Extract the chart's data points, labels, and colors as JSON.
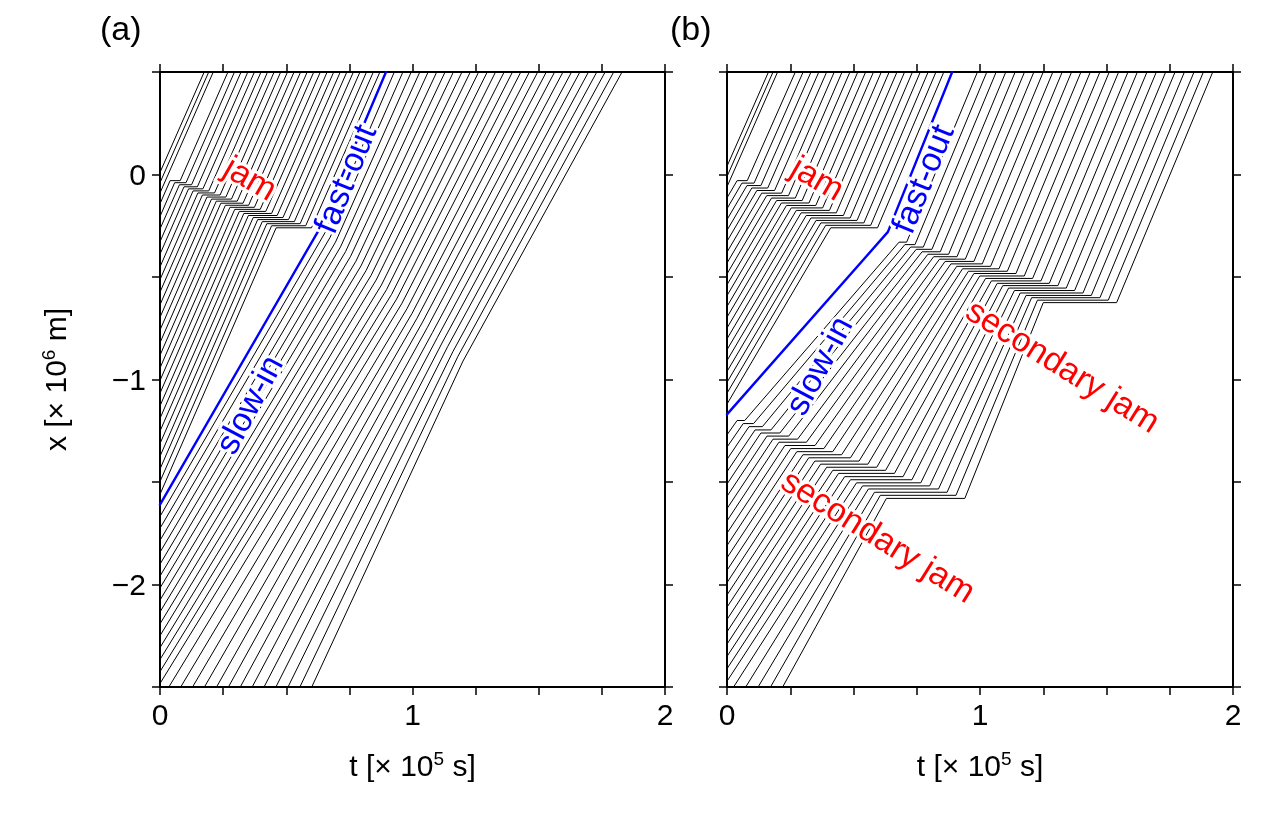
{
  "chart_data": [
    {
      "type": "line",
      "title": "(a)",
      "xlabel": "t [× 10$^{5}$ s]",
      "ylabel": "x [× 10$^{6}$ m]",
      "xlim": [
        0,
        2
      ],
      "ylim": [
        -2.5,
        0.5
      ],
      "xticks": [
        0,
        {
          "value": 0.25,
          "label": null
        },
        {
          "value": 0.5,
          "label": null
        },
        {
          "value": 0.75,
          "label": null
        },
        1,
        {
          "value": 1.25,
          "label": null
        },
        {
          "value": 1.5,
          "label": null
        },
        {
          "value": 1.75,
          "label": null
        },
        2
      ],
      "yticks": [
        {
          "value": -2.5,
          "label": null
        },
        {
          "value": -2,
          "label": "−2"
        },
        {
          "value": -1.5,
          "label": null
        },
        {
          "value": -1,
          "label": "−1"
        },
        {
          "value": -0.5,
          "label": null
        },
        0,
        {
          "value": 0.5,
          "label": null
        }
      ],
      "marker": "none",
      "line_style": "solid",
      "annotations": [
        "jam",
        "fast-out",
        "slow-in"
      ],
      "series": [
        {
          "color": "#000000",
          "x": [
            0,
            0.175
          ],
          "values": [
            0.01,
            0.5
          ]
        },
        {
          "color": "#000000",
          "x": [
            0,
            0.193
          ],
          "values": [
            -0.04,
            0.5
          ]
        },
        {
          "color": "#000000",
          "x": [
            0,
            0.211
          ],
          "values": [
            -0.09,
            0.5
          ]
        },
        {
          "color": "#000000",
          "x": [
            0,
            0.04,
            0.08,
            0.269
          ],
          "values": [
            -0.143,
            -0.03,
            -0.03,
            0.5
          ]
        },
        {
          "color": "#000000",
          "x": [
            0,
            0.058,
            0.103,
            0.295
          ],
          "values": [
            -0.205,
            -0.04,
            -0.04,
            0.5
          ]
        },
        {
          "color": "#000000",
          "x": [
            0,
            0.077,
            0.125,
            0.321
          ],
          "values": [
            -0.266,
            -0.05,
            -0.05,
            0.5
          ]
        },
        {
          "color": "#000000",
          "x": [
            0,
            0.095,
            0.148,
            0.348
          ],
          "values": [
            -0.328,
            -0.06,
            -0.06,
            0.5
          ]
        },
        {
          "color": "#000000",
          "x": [
            0,
            0.113,
            0.17,
            0.374
          ],
          "values": [
            -0.389,
            -0.07,
            -0.07,
            0.5
          ]
        },
        {
          "color": "#000000",
          "x": [
            0,
            0.131,
            0.193,
            0.4
          ],
          "values": [
            -0.451,
            -0.08,
            -0.08,
            0.5
          ]
        },
        {
          "color": "#000000",
          "x": [
            0,
            0.15,
            0.216,
            0.426
          ],
          "values": [
            -0.513,
            -0.09,
            -0.09,
            0.5
          ]
        },
        {
          "color": "#000000",
          "x": [
            0,
            0.168,
            0.238,
            0.452
          ],
          "values": [
            -0.574,
            -0.1,
            -0.1,
            0.5
          ]
        },
        {
          "color": "#000000",
          "x": [
            0,
            0.186,
            0.261,
            0.478
          ],
          "values": [
            -0.636,
            -0.11,
            -0.11,
            0.5
          ]
        },
        {
          "color": "#000000",
          "x": [
            0,
            0.204,
            0.283,
            0.505
          ],
          "values": [
            -0.697,
            -0.12,
            -0.12,
            0.5
          ]
        },
        {
          "color": "#000000",
          "x": [
            0,
            0.223,
            0.306,
            0.531
          ],
          "values": [
            -0.759,
            -0.13,
            -0.13,
            0.5
          ]
        },
        {
          "color": "#000000",
          "x": [
            0,
            0.241,
            0.329,
            0.557
          ],
          "values": [
            -0.821,
            -0.14,
            -0.14,
            0.5
          ]
        },
        {
          "color": "#000000",
          "x": [
            0,
            0.259,
            0.351,
            0.583
          ],
          "values": [
            -0.882,
            -0.15,
            -0.15,
            0.5
          ]
        },
        {
          "color": "#000000",
          "x": [
            0,
            0.277,
            0.374,
            0.609
          ],
          "values": [
            -0.944,
            -0.16,
            -0.16,
            0.5
          ]
        },
        {
          "color": "#000000",
          "x": [
            0,
            0.296,
            0.397,
            0.635
          ],
          "values": [
            -1.005,
            -0.17,
            -0.17,
            0.5
          ]
        },
        {
          "color": "#000000",
          "x": [
            0,
            0.314,
            0.419,
            0.662
          ],
          "values": [
            -1.067,
            -0.18,
            -0.18,
            0.5
          ]
        },
        {
          "color": "#000000",
          "x": [
            0,
            0.332,
            0.442,
            0.688
          ],
          "values": [
            -1.129,
            -0.19,
            -0.19,
            0.5
          ]
        },
        {
          "color": "#000000",
          "x": [
            0,
            0.35,
            0.464,
            0.714
          ],
          "values": [
            -1.19,
            -0.2,
            -0.2,
            0.5
          ]
        },
        {
          "color": "#000000",
          "x": [
            0,
            0.369,
            0.487,
            0.74
          ],
          "values": [
            -1.252,
            -0.21,
            -0.21,
            0.5
          ]
        },
        {
          "color": "#000000",
          "x": [
            0,
            0.387,
            0.509,
            0.766
          ],
          "values": [
            -1.313,
            -0.22,
            -0.22,
            0.5
          ]
        },
        {
          "color": "#000000",
          "x": [
            0,
            0.405,
            0.532,
            0.792
          ],
          "values": [
            -1.375,
            -0.23,
            -0.23,
            0.5
          ]
        },
        {
          "color": "#000000",
          "x": [
            0,
            0.423,
            0.555,
            0.818
          ],
          "values": [
            -1.437,
            -0.24,
            -0.24,
            0.5
          ]
        },
        {
          "color": "#000000",
          "x": [
            0,
            0.442,
            0.577,
            0.845
          ],
          "values": [
            -1.498,
            -0.25,
            -0.25,
            0.5
          ]
        },
        {
          "color": "#000000",
          "x": [
            0,
            0.46,
            0.6,
            0.871
          ],
          "values": [
            -1.56,
            -0.26,
            -0.26,
            0.5
          ]
        },
        {
          "color": "#000000",
          "x": [
            0,
            0.654,
            0.928
          ],
          "values": [
            -1.668,
            -0.283,
            0.5
          ]
        },
        {
          "color": "#000000",
          "x": [
            0,
            0.674,
            0.962
          ],
          "values": [
            -1.726,
            -0.306,
            0.5
          ]
        },
        {
          "color": "#000000",
          "x": [
            0,
            0.695,
            0.995
          ],
          "values": [
            -1.785,
            -0.33,
            0.5
          ]
        },
        {
          "color": "#000000",
          "x": [
            0,
            0.715,
            1.029
          ],
          "values": [
            -1.843,
            -0.353,
            0.5
          ]
        },
        {
          "color": "#000000",
          "x": [
            0,
            0.735,
            1.062
          ],
          "values": [
            -1.901,
            -0.376,
            0.5
          ]
        },
        {
          "color": "#000000",
          "x": [
            0,
            0.755,
            1.096
          ],
          "values": [
            -1.959,
            -0.399,
            0.5
          ]
        },
        {
          "color": "#000000",
          "x": [
            0,
            0.776,
            1.129
          ],
          "values": [
            -2.017,
            -0.423,
            0.5
          ]
        },
        {
          "color": "#000000",
          "x": [
            0,
            0.796,
            1.162
          ],
          "values": [
            -2.076,
            -0.446,
            0.5
          ]
        },
        {
          "color": "#000000",
          "x": [
            0,
            0.816,
            1.196
          ],
          "values": [
            -2.134,
            -0.469,
            0.5
          ]
        },
        {
          "color": "#000000",
          "x": [
            0,
            0.836,
            1.229
          ],
          "values": [
            -2.192,
            -0.492,
            0.5
          ]
        },
        {
          "color": "#000000",
          "x": [
            0,
            0.856,
            1.262
          ],
          "values": [
            -2.25,
            -0.515,
            0.5
          ]
        },
        {
          "color": "#000000",
          "x": [
            0,
            0.877,
            1.296
          ],
          "values": [
            -2.308,
            -0.539,
            0.5
          ]
        },
        {
          "color": "#000000",
          "x": [
            0,
            0.897,
            1.329
          ],
          "values": [
            -2.366,
            -0.562,
            0.5
          ]
        },
        {
          "color": "#000000",
          "x": [
            0,
            0.917,
            1.363
          ],
          "values": [
            -2.425,
            -0.585,
            0.5
          ]
        },
        {
          "color": "#000000",
          "x": [
            0,
            0.937,
            1.396
          ],
          "values": [
            -2.483,
            -0.608,
            0.5
          ]
        },
        {
          "color": "#000000",
          "x": [
            0.035,
            0.957,
            1.429
          ],
          "values": [
            -2.5,
            -0.631,
            0.5
          ]
        },
        {
          "color": "#000000",
          "x": [
            0.082,
            0.978,
            1.463
          ],
          "values": [
            -2.5,
            -0.655,
            0.5
          ]
        },
        {
          "color": "#000000",
          "x": [
            0.129,
            0.998,
            1.496
          ],
          "values": [
            -2.5,
            -0.678,
            0.5
          ]
        },
        {
          "color": "#000000",
          "x": [
            0.176,
            1.018,
            1.53
          ],
          "values": [
            -2.5,
            -0.701,
            0.5
          ]
        },
        {
          "color": "#000000",
          "x": [
            0.224,
            1.038,
            1.563
          ],
          "values": [
            -2.5,
            -0.724,
            0.5
          ]
        },
        {
          "color": "#000000",
          "x": [
            0.271,
            1.058,
            1.596
          ],
          "values": [
            -2.5,
            -0.748,
            0.5
          ]
        },
        {
          "color": "#000000",
          "x": [
            0.318,
            1.079,
            1.63
          ],
          "values": [
            -2.5,
            -0.771,
            0.5
          ]
        },
        {
          "color": "#000000",
          "x": [
            0.365,
            1.099,
            1.663
          ],
          "values": [
            -2.5,
            -0.794,
            0.5
          ]
        },
        {
          "color": "#000000",
          "x": [
            0.412,
            1.119,
            1.697
          ],
          "values": [
            -2.5,
            -0.817,
            0.5
          ]
        },
        {
          "color": "#000000",
          "x": [
            0.459,
            1.139,
            1.73
          ],
          "values": [
            -2.5,
            -0.84,
            0.5
          ]
        },
        {
          "color": "#000000",
          "x": [
            0.507,
            1.16,
            1.763
          ],
          "values": [
            -2.5,
            -0.864,
            0.5
          ]
        },
        {
          "color": "#000000",
          "x": [
            0.554,
            1.18,
            1.797
          ],
          "values": [
            -2.5,
            -0.887,
            0.5
          ]
        },
        {
          "color": "#000000",
          "x": [
            0.601,
            1.2,
            1.83
          ],
          "values": [
            -2.5,
            -0.91,
            0.5
          ]
        },
        {
          "color": "#0000ff",
          "x": [
            0,
            0.634,
            0.895
          ],
          "values": [
            -1.61,
            -0.26,
            0.5
          ]
        }
      ]
    },
    {
      "type": "line",
      "title": "(b)",
      "xlabel": "t [× 10$^{5}$ s]",
      "xlim": [
        0,
        2
      ],
      "ylim": [
        -2.5,
        0.5
      ],
      "tick_labels": "x",
      "xticks": [
        0,
        {
          "value": 0.25,
          "label": null
        },
        {
          "value": 0.5,
          "label": null
        },
        {
          "value": 0.75,
          "label": null
        },
        1,
        {
          "value": 1.25,
          "label": null
        },
        {
          "value": 1.5,
          "label": null
        },
        {
          "value": 1.75,
          "label": null
        },
        2
      ],
      "yticks": [
        {
          "value": -2.5,
          "label": null
        },
        {
          "value": -2,
          "label": null
        },
        {
          "value": -1.5,
          "label": null
        },
        {
          "value": -1,
          "label": null
        },
        {
          "value": -0.5,
          "label": null
        },
        {
          "value": 0,
          "label": null
        },
        {
          "value": 0.5,
          "label": null
        }
      ],
      "marker": "none",
      "line_style": "solid",
      "annotations": [
        "jam",
        "fast-out",
        "slow-in",
        "secondary jam",
        "secondary jam"
      ],
      "series": [
        {
          "color": "#000000",
          "x": [
            0,
            0.164
          ],
          "values": [
            0.04,
            0.5
          ]
        },
        {
          "color": "#000000",
          "x": [
            0,
            0.182
          ],
          "values": [
            -0.01,
            0.5
          ]
        },
        {
          "color": "#000000",
          "x": [
            0,
            0.2
          ],
          "values": [
            -0.06,
            0.5
          ]
        },
        {
          "color": "#000000",
          "x": [
            0,
            0.04,
            0.08,
            0.27
          ],
          "values": [
            -0.114,
            -0.03,
            -0.03,
            0.5
          ]
        },
        {
          "color": "#000000",
          "x": [
            0,
            0.059,
            0.107,
            0.301
          ],
          "values": [
            -0.167,
            -0.042,
            -0.042,
            0.5
          ]
        },
        {
          "color": "#000000",
          "x": [
            0,
            0.079,
            0.134,
            0.332
          ],
          "values": [
            -0.22,
            -0.054,
            -0.054,
            0.5
          ]
        },
        {
          "color": "#000000",
          "x": [
            0,
            0.098,
            0.161,
            0.363
          ],
          "values": [
            -0.273,
            -0.066,
            -0.066,
            0.5
          ]
        },
        {
          "color": "#000000",
          "x": [
            0,
            0.118,
            0.188,
            0.394
          ],
          "values": [
            -0.326,
            -0.078,
            -0.078,
            0.5
          ]
        },
        {
          "color": "#000000",
          "x": [
            0,
            0.137,
            0.216,
            0.424
          ],
          "values": [
            -0.379,
            -0.091,
            -0.091,
            0.5
          ]
        },
        {
          "color": "#000000",
          "x": [
            0,
            0.157,
            0.243,
            0.455
          ],
          "values": [
            -0.432,
            -0.103,
            -0.103,
            0.5
          ]
        },
        {
          "color": "#000000",
          "x": [
            0,
            0.176,
            0.27,
            0.486
          ],
          "values": [
            -0.485,
            -0.115,
            -0.115,
            0.5
          ]
        },
        {
          "color": "#000000",
          "x": [
            0,
            0.196,
            0.297,
            0.517
          ],
          "values": [
            -0.538,
            -0.127,
            -0.127,
            0.5
          ]
        },
        {
          "color": "#000000",
          "x": [
            0,
            0.215,
            0.324,
            0.548
          ],
          "values": [
            -0.591,
            -0.139,
            -0.139,
            0.5
          ]
        },
        {
          "color": "#000000",
          "x": [
            0,
            0.235,
            0.351,
            0.579
          ],
          "values": [
            -0.644,
            -0.151,
            -0.151,
            0.5
          ]
        },
        {
          "color": "#000000",
          "x": [
            0,
            0.254,
            0.378,
            0.61
          ],
          "values": [
            -0.696,
            -0.163,
            -0.163,
            0.5
          ]
        },
        {
          "color": "#000000",
          "x": [
            0,
            0.274,
            0.405,
            0.641
          ],
          "values": [
            -0.749,
            -0.175,
            -0.175,
            0.5
          ]
        },
        {
          "color": "#000000",
          "x": [
            0,
            0.293,
            0.432,
            0.672
          ],
          "values": [
            -0.802,
            -0.187,
            -0.187,
            0.5
          ]
        },
        {
          "color": "#000000",
          "x": [
            0,
            0.313,
            0.46,
            0.702
          ],
          "values": [
            -0.855,
            -0.2,
            -0.2,
            0.5
          ]
        },
        {
          "color": "#000000",
          "x": [
            0,
            0.332,
            0.487,
            0.733
          ],
          "values": [
            -0.908,
            -0.212,
            -0.212,
            0.5
          ]
        },
        {
          "color": "#000000",
          "x": [
            0,
            0.352,
            0.514,
            0.764
          ],
          "values": [
            -0.961,
            -0.224,
            -0.224,
            0.5
          ]
        },
        {
          "color": "#000000",
          "x": [
            0,
            0.371,
            0.541,
            0.795
          ],
          "values": [
            -1.014,
            -0.236,
            -0.236,
            0.5
          ]
        },
        {
          "color": "#000000",
          "x": [
            0,
            0.39,
            0.568,
            0.826
          ],
          "values": [
            -1.067,
            -0.248,
            -0.248,
            0.5
          ]
        },
        {
          "color": "#000000",
          "x": [
            0,
            0.41,
            0.595,
            0.857
          ],
          "values": [
            -1.12,
            -0.26,
            -0.26,
            0.5
          ]
        },
        {
          "color": "#000000",
          "x": [
            0,
            0.04,
            0.07,
            0.68,
            0.71,
            0.99
          ],
          "values": [
            -1.27,
            -1.2,
            -1.2,
            -0.33,
            -0.33,
            0.5
          ]
        },
        {
          "color": "#000000",
          "x": [
            0,
            0.064,
            0.105,
            0.703,
            0.743,
            1.027
          ],
          "values": [
            -1.33,
            -1.215,
            -1.215,
            -0.342,
            -0.342,
            0.5
          ]
        },
        {
          "color": "#000000",
          "x": [
            0,
            0.087,
            0.14,
            0.726,
            0.776,
            1.064
          ],
          "values": [
            -1.39,
            -1.23,
            -1.23,
            -0.354,
            -0.354,
            0.5
          ]
        },
        {
          "color": "#000000",
          "x": [
            0,
            0.111,
            0.174,
            0.748,
            0.81,
            1.102
          ],
          "values": [
            -1.45,
            -1.246,
            -1.246,
            -0.365,
            -0.365,
            0.5
          ]
        },
        {
          "color": "#000000",
          "x": [
            0,
            0.134,
            0.209,
            0.771,
            0.843,
            1.139
          ],
          "values": [
            -1.51,
            -1.261,
            -1.261,
            -0.377,
            -0.377,
            0.5
          ]
        },
        {
          "color": "#000000",
          "x": [
            0,
            0.158,
            0.244,
            0.794,
            0.876,
            1.176
          ],
          "values": [
            -1.57,
            -1.276,
            -1.276,
            -0.389,
            -0.389,
            0.5
          ]
        },
        {
          "color": "#000000",
          "x": [
            0,
            0.182,
            0.279,
            0.817,
            0.909,
            1.213
          ],
          "values": [
            -1.63,
            -1.291,
            -1.291,
            -0.401,
            -0.401,
            0.5
          ]
        },
        {
          "color": "#000000",
          "x": [
            0,
            0.205,
            0.314,
            0.84,
            0.942,
            1.25
          ],
          "values": [
            -1.69,
            -1.306,
            -1.306,
            -0.413,
            -0.413,
            0.5
          ]
        },
        {
          "color": "#000000",
          "x": [
            0,
            0.229,
            0.348,
            0.862,
            0.976,
            1.288
          ],
          "values": [
            -1.75,
            -1.322,
            -1.322,
            -0.424,
            -0.424,
            0.5
          ]
        },
        {
          "color": "#000000",
          "x": [
            0,
            0.252,
            0.383,
            0.885,
            1.009,
            1.325
          ],
          "values": [
            -1.81,
            -1.337,
            -1.337,
            -0.436,
            -0.436,
            0.5
          ]
        },
        {
          "color": "#000000",
          "x": [
            0,
            0.276,
            0.418,
            0.908,
            1.042,
            1.362
          ],
          "values": [
            -1.87,
            -1.352,
            -1.352,
            -0.448,
            -0.448,
            0.5
          ]
        },
        {
          "color": "#000000",
          "x": [
            0,
            0.3,
            0.453,
            0.931,
            1.075,
            1.399
          ],
          "values": [
            -1.931,
            -1.367,
            -1.367,
            -0.46,
            -0.46,
            0.5
          ]
        },
        {
          "color": "#000000",
          "x": [
            0,
            0.323,
            0.488,
            0.954,
            1.108,
            1.436
          ],
          "values": [
            -1.991,
            -1.382,
            -1.382,
            -0.472,
            -0.472,
            0.5
          ]
        },
        {
          "color": "#000000",
          "x": [
            0,
            0.347,
            0.522,
            0.976,
            1.142,
            1.474
          ],
          "values": [
            -2.051,
            -1.398,
            -1.398,
            -0.483,
            -0.483,
            0.5
          ]
        },
        {
          "color": "#000000",
          "x": [
            0,
            0.37,
            0.557,
            0.999,
            1.175,
            1.511
          ],
          "values": [
            -2.111,
            -1.413,
            -1.413,
            -0.495,
            -0.495,
            0.5
          ]
        },
        {
          "color": "#000000",
          "x": [
            0,
            0.394,
            0.592,
            1.022,
            1.208,
            1.548
          ],
          "values": [
            -2.171,
            -1.428,
            -1.428,
            -0.507,
            -0.507,
            0.5
          ]
        },
        {
          "color": "#000000",
          "x": [
            0,
            0.418,
            0.627,
            1.045,
            1.241,
            1.585
          ],
          "values": [
            -2.231,
            -1.443,
            -1.443,
            -0.519,
            -0.519,
            0.5
          ]
        },
        {
          "color": "#000000",
          "x": [
            0,
            0.441,
            0.662,
            1.068,
            1.274,
            1.622
          ],
          "values": [
            -2.291,
            -1.458,
            -1.458,
            -0.531,
            -0.531,
            0.5
          ]
        },
        {
          "color": "#000000",
          "x": [
            0,
            0.465,
            0.696,
            1.09,
            1.308,
            1.66
          ],
          "values": [
            -2.351,
            -1.474,
            -1.474,
            -0.542,
            -0.542,
            0.5
          ]
        },
        {
          "color": "#000000",
          "x": [
            0,
            0.488,
            0.731,
            1.113,
            1.341,
            1.697
          ],
          "values": [
            -2.411,
            -1.489,
            -1.489,
            -0.554,
            -0.554,
            0.5
          ]
        },
        {
          "color": "#000000",
          "x": [
            0,
            0.512,
            0.766,
            1.136,
            1.374,
            1.734
          ],
          "values": [
            -2.472,
            -1.504,
            -1.504,
            -0.566,
            -0.566,
            0.5
          ]
        },
        {
          "color": "#000000",
          "x": [
            0.026,
            0.536,
            0.801,
            1.159,
            1.407,
            1.771
          ],
          "values": [
            -2.5,
            -1.519,
            -1.519,
            -0.578,
            -0.578,
            0.5
          ]
        },
        {
          "color": "#000000",
          "x": [
            0.074,
            0.559,
            0.836,
            1.182,
            1.44,
            1.808
          ],
          "values": [
            -2.5,
            -1.534,
            -1.534,
            -0.59,
            -0.59,
            0.5
          ]
        },
        {
          "color": "#000000",
          "x": [
            0.123,
            0.583,
            0.87,
            1.204,
            1.474,
            1.846
          ],
          "values": [
            -2.5,
            -1.55,
            -1.55,
            -0.601,
            -0.601,
            0.5
          ]
        },
        {
          "color": "#000000",
          "x": [
            0.172,
            0.606,
            0.905,
            1.227,
            1.507,
            1.883
          ],
          "values": [
            -2.5,
            -1.565,
            -1.565,
            -0.613,
            -0.613,
            0.5
          ]
        },
        {
          "color": "#000000",
          "x": [
            0.22,
            0.63,
            0.94,
            1.25,
            1.54,
            1.92
          ],
          "values": [
            -2.5,
            -1.58,
            -1.58,
            -0.625,
            -0.625,
            0.5
          ]
        },
        {
          "color": "#0000ff",
          "x": [
            0,
            0.636,
            0.89
          ],
          "values": [
            -1.17,
            -0.28,
            0.5
          ]
        }
      ]
    }
  ]
}
